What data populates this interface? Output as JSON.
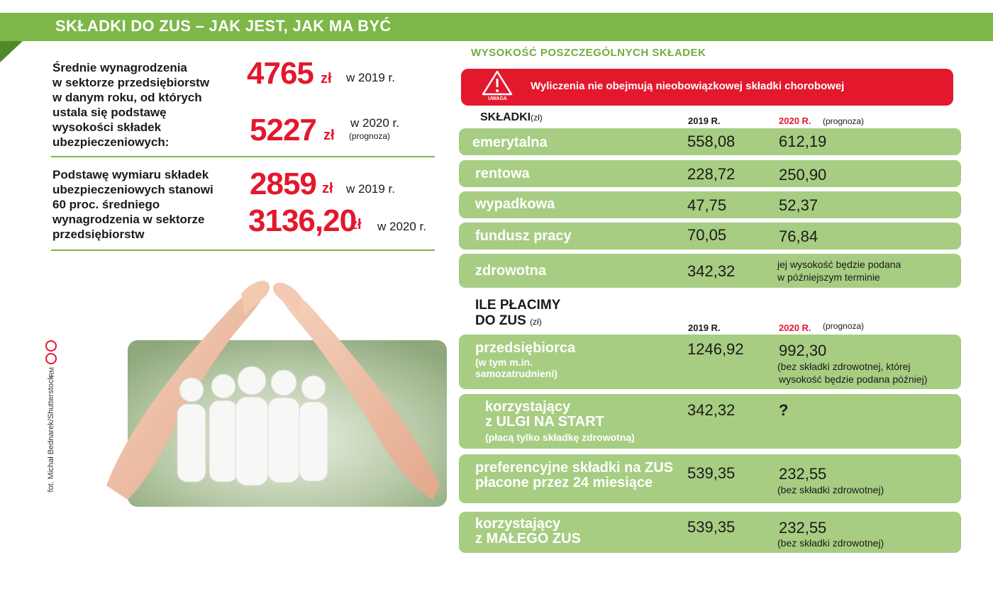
{
  "header": {
    "title": "SKŁADKI DO ZUS – JAK JEST, JAK MA BYĆ"
  },
  "left": {
    "block1_text": [
      "Średnie wynagrodzenia",
      "w sektorze przedsiębiorstw",
      "w danym roku, od których",
      "ustala się podstawę",
      "wysokości składek",
      "ubezpieczeniowych:"
    ],
    "val2019": "4765",
    "val2020": "5227",
    "currency": "zł",
    "year2019": "w 2019 r.",
    "year2020": "w 2020 r.",
    "prognoza": "(prognoza)",
    "block2_text": [
      "Podstawę wymiaru składek",
      "ubezpieczeniowych stanowi",
      "60 proc. średniego",
      "wynagrodzenia w sektorze",
      "przedsiębiorstw"
    ],
    "base2019": "2859",
    "base2020": "3136,20",
    "credit": "fot. Michał Bednarek/Shutterstock",
    "rm": "RM"
  },
  "right": {
    "section_title": "WYSOKOŚĆ POSZCZEGÓLNYCH SKŁADEK",
    "warning": "Wyliczenia nie obejmują nieobowiązkowej składki chorobowej",
    "warning_icon_label": "UWAGA",
    "skladki_label": "SKŁADKI",
    "zl_unit": "(zł)",
    "col2019": "2019 R.",
    "col2020": "2020 R.",
    "col2020_note": "(prognoza)",
    "rows": [
      {
        "label": "emerytalna",
        "v2019": "558,08",
        "v2020": "612,19"
      },
      {
        "label": "rentowa",
        "v2019": "228,72",
        "v2020": "250,90"
      },
      {
        "label": "wypadkowa",
        "v2019": "47,75",
        "v2020": "52,37"
      },
      {
        "label": "fundusz pracy",
        "v2019": "70,05",
        "v2020": "76,84"
      },
      {
        "label": "zdrowotna",
        "v2019": "342,32",
        "v2020_note1": "jej wysokość będzie podana",
        "v2020_note2": "w późniejszym terminie"
      }
    ],
    "ile_title1": "ILE PŁACIMY",
    "ile_title2": "DO ZUS",
    "ile_rows": [
      {
        "label": "przedsiębiorca",
        "sub1": "(w tym m.in.",
        "sub2": "samozatrudnieni)",
        "v2019": "1246,92",
        "v2020": "992,30",
        "note1": "(bez składki zdrowotnej, której",
        "note2": "wysokość będzie podana później)"
      },
      {
        "label1": "korzystający",
        "label2": "z ULGI NA START",
        "sub": "(płacą tylko składkę zdrowotną)",
        "v2019": "342,32",
        "v2020": "?"
      },
      {
        "label1": "preferencyjne składki na ZUS",
        "label2": "płacone przez 24 miesiące",
        "v2019": "539,35",
        "v2020": "232,55",
        "note": "(bez składki zdrowotnej)"
      },
      {
        "label1": "korzystający",
        "label2": "z MAŁEGO ZUS",
        "v2019": "539,35",
        "v2020": "232,55",
        "note": "(bez składki zdrowotnej)"
      }
    ]
  }
}
